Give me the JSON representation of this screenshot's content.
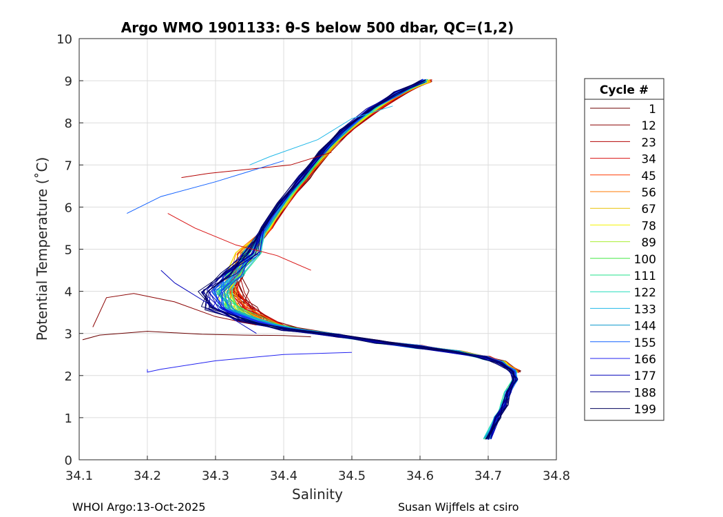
{
  "chart_data": {
    "type": "line",
    "title": "Argo WMO 1901133: θ-S below 500 dbar,  QC=(1,2)",
    "xlabel": "Salinity",
    "ylabel": "Potential Temperature (˚C)",
    "xlim": [
      34.1,
      34.8
    ],
    "ylim": [
      0,
      10
    ],
    "xticks": [
      "34.1",
      "34.2",
      "34.3",
      "34.4",
      "34.5",
      "34.6",
      "34.7",
      "34.8"
    ],
    "yticks": [
      "0",
      "1",
      "2",
      "3",
      "4",
      "5",
      "6",
      "7",
      "8",
      "9",
      "10"
    ],
    "grid": true,
    "legend": {
      "title": "Cycle #",
      "placement": "right-outside",
      "entries": [
        "1",
        "12",
        "23",
        "34",
        "45",
        "56",
        "67",
        "78",
        "89",
        "100",
        "111",
        "122",
        "133",
        "144",
        "155",
        "166",
        "177",
        "188",
        "199"
      ],
      "colors": [
        "#6b0000",
        "#8a0000",
        "#b30000",
        "#d81010",
        "#ff3a00",
        "#ff7a00",
        "#e8c000",
        "#f2f200",
        "#a8ee30",
        "#44e844",
        "#22e088",
        "#22ddbb",
        "#20b8e8",
        "#0a98cc",
        "#1060ff",
        "#2020f0",
        "#0000bb",
        "#000088",
        "#00005a"
      ]
    },
    "series_shape": {
      "salinity": [
        34.745,
        34.725,
        34.7,
        34.66,
        34.6,
        34.54,
        34.48,
        34.43,
        34.39,
        34.36,
        34.345,
        34.345,
        34.355,
        34.375,
        34.4,
        34.43,
        34.46,
        34.49,
        34.53,
        34.57,
        34.61
      ],
      "theta": [
        2.1,
        2.3,
        2.42,
        2.55,
        2.68,
        2.8,
        2.95,
        3.1,
        3.3,
        3.6,
        4.0,
        4.4,
        4.9,
        5.5,
        6.1,
        6.7,
        7.3,
        7.8,
        8.3,
        8.7,
        9.0
      ]
    },
    "deep_tail": {
      "salinity": [
        34.745,
        34.74,
        34.73,
        34.725,
        34.715,
        34.7
      ],
      "theta": [
        2.1,
        1.9,
        1.6,
        1.3,
        1.0,
        0.5
      ]
    },
    "anomalies": [
      {
        "cycle": "1",
        "salinity": [
          34.44,
          34.4,
          34.34,
          34.28,
          34.2,
          34.13,
          34.105
        ],
        "theta": [
          2.92,
          2.95,
          2.96,
          2.98,
          3.05,
          2.96,
          2.85
        ]
      },
      {
        "cycle": "12",
        "salinity": [
          34.36,
          34.3,
          34.24,
          34.18,
          34.14,
          34.12
        ],
        "theta": [
          3.2,
          3.4,
          3.75,
          3.95,
          3.85,
          3.15
        ]
      },
      {
        "cycle": "23",
        "salinity": [
          34.47,
          34.41,
          34.35,
          34.29,
          34.25
        ],
        "theta": [
          7.3,
          7.0,
          6.9,
          6.8,
          6.7
        ]
      },
      {
        "cycle": "34",
        "salinity": [
          34.44,
          34.39,
          34.33,
          34.27,
          34.23
        ],
        "theta": [
          4.5,
          4.85,
          5.1,
          5.5,
          5.85
        ]
      },
      {
        "cycle": "155",
        "salinity": [
          34.4,
          34.35,
          34.3,
          34.22,
          34.17
        ],
        "theta": [
          7.1,
          6.85,
          6.6,
          6.25,
          5.85
        ]
      },
      {
        "cycle": "166",
        "salinity": [
          34.5,
          34.4,
          34.3,
          34.22,
          34.2,
          34.2
        ],
        "theta": [
          2.55,
          2.5,
          2.35,
          2.15,
          2.08,
          2.15
        ]
      },
      {
        "cycle": "177",
        "salinity": [
          34.36,
          34.3,
          34.24,
          34.22
        ],
        "theta": [
          3.0,
          3.6,
          4.2,
          4.5
        ]
      },
      {
        "cycle": "133",
        "salinity": [
          34.56,
          34.5,
          34.45,
          34.38,
          34.35
        ],
        "theta": [
          8.4,
          8.1,
          7.6,
          7.2,
          7.0
        ]
      }
    ]
  },
  "footer": {
    "left": "WHOI Argo:13-Oct-2025",
    "right": "Susan Wijffels at csiro"
  }
}
